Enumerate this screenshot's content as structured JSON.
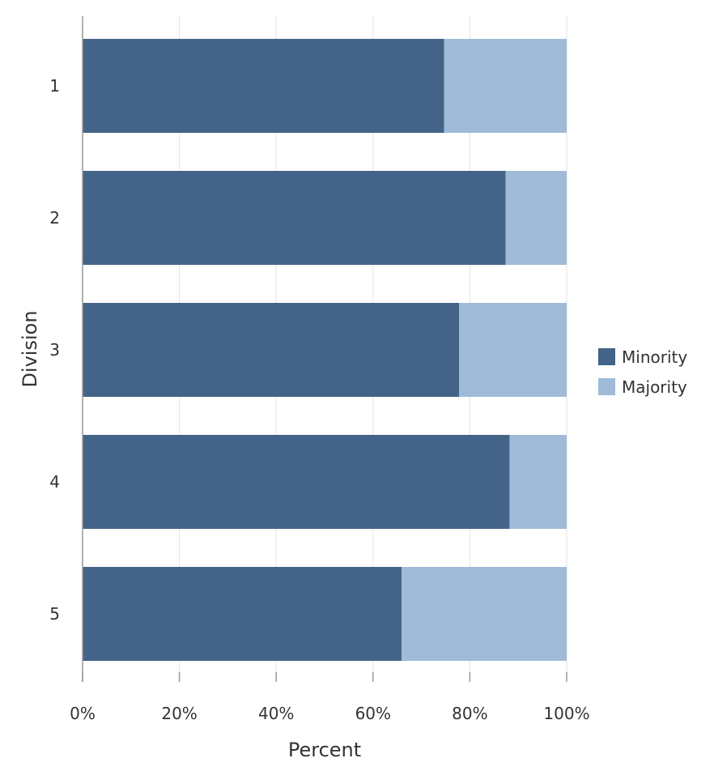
{
  "chart_data": {
    "type": "bar",
    "orientation": "horizontal",
    "stacked": true,
    "categories": [
      "1",
      "2",
      "3",
      "4",
      "5"
    ],
    "series": [
      {
        "name": "Minority",
        "values": [
          74.7,
          87.4,
          77.8,
          88.2,
          65.9
        ],
        "color": "#436488"
      },
      {
        "name": "Majority",
        "values": [
          25.3,
          12.6,
          22.2,
          11.8,
          34.1
        ],
        "color": "#9fbbd8"
      }
    ],
    "xlabel": "Percent",
    "ylabel": "Division",
    "xlim": [
      0,
      100
    ],
    "xticks": [
      0,
      20,
      40,
      60,
      80,
      100
    ],
    "xtick_labels": [
      "0%",
      "20%",
      "40%",
      "60%",
      "80%",
      "100%"
    ],
    "grid": true,
    "legend_position": "right"
  }
}
